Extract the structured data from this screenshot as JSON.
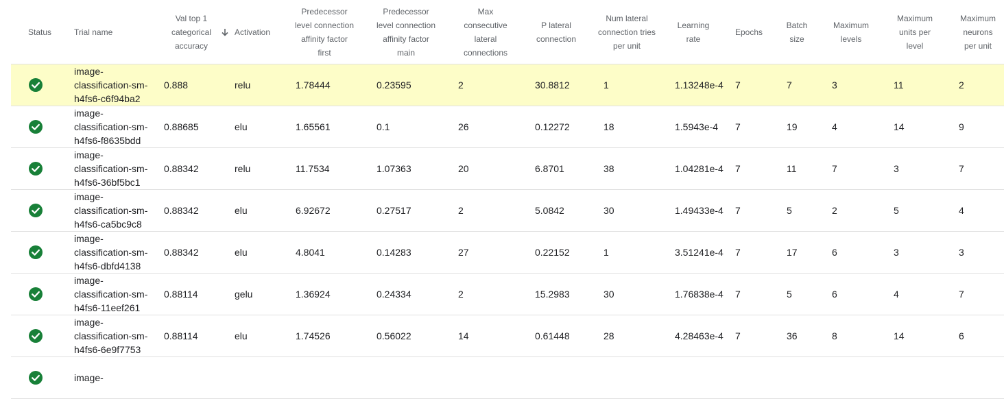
{
  "columns": {
    "status": "Status",
    "trial_name": "Trial name",
    "val_acc": "Val top 1 categorical accuracy",
    "activation": "Activation",
    "pred_first": "Predecessor level connection affinity factor first",
    "pred_main": "Predecessor level connection affinity factor main",
    "max_lateral": "Max consecutive lateral connections",
    "p_lateral": "P lateral connection",
    "num_lateral": "Num lateral connection tries per unit",
    "lr": "Learning rate",
    "epochs": "Epochs",
    "batch": "Batch size",
    "max_levels": "Maximum levels",
    "max_units": "Maximum units per level",
    "max_neurons": "Maximum neurons per unit"
  },
  "colors": {
    "success": "#188038",
    "selected_row": "#fdfdc8",
    "divider": "#e0e0e0"
  },
  "status_icon": "check-circle-icon",
  "sort_icon": "arrow-down-icon",
  "rows": [
    {
      "name_1": "image-",
      "name_2": "classification-sm-",
      "name_3": "h4fs6-c6f94ba2",
      "val": "0.888",
      "act": "relu",
      "pf": "1.78444",
      "pm": "0.23595",
      "mcl": "2",
      "pl": "30.8812",
      "nl": "1",
      "lr": "1.13248e-4",
      "ep": "7",
      "bs": "7",
      "ml": "3",
      "mu": "11",
      "mn": "2"
    },
    {
      "name_1": "image-",
      "name_2": "classification-sm-",
      "name_3": "h4fs6-f8635bdd",
      "val": "0.88685",
      "act": "elu",
      "pf": "1.65561",
      "pm": "0.1",
      "mcl": "26",
      "pl": "0.12272",
      "nl": "18",
      "lr": "1.5943e-4",
      "ep": "7",
      "bs": "19",
      "ml": "4",
      "mu": "14",
      "mn": "9"
    },
    {
      "name_1": "image-",
      "name_2": "classification-sm-",
      "name_3": "h4fs6-36bf5bc1",
      "val": "0.88342",
      "act": "relu",
      "pf": "11.7534",
      "pm": "1.07363",
      "mcl": "20",
      "pl": "6.8701",
      "nl": "38",
      "lr": "1.04281e-4",
      "ep": "7",
      "bs": "11",
      "ml": "7",
      "mu": "3",
      "mn": "7"
    },
    {
      "name_1": "image-",
      "name_2": "classification-sm-",
      "name_3": "h4fs6-ca5bc9c8",
      "val": "0.88342",
      "act": "elu",
      "pf": "6.92672",
      "pm": "0.27517",
      "mcl": "2",
      "pl": "5.0842",
      "nl": "30",
      "lr": "1.49433e-4",
      "ep": "7",
      "bs": "5",
      "ml": "2",
      "mu": "5",
      "mn": "4"
    },
    {
      "name_1": "image-",
      "name_2": "classification-sm-",
      "name_3": "h4fs6-dbfd4138",
      "val": "0.88342",
      "act": "elu",
      "pf": "4.8041",
      "pm": "0.14283",
      "mcl": "27",
      "pl": "0.22152",
      "nl": "1",
      "lr": "3.51241e-4",
      "ep": "7",
      "bs": "17",
      "ml": "6",
      "mu": "3",
      "mn": "3"
    },
    {
      "name_1": "image-",
      "name_2": "classification-sm-",
      "name_3": "h4fs6-11eef261",
      "val": "0.88114",
      "act": "gelu",
      "pf": "1.36924",
      "pm": "0.24334",
      "mcl": "2",
      "pl": "15.2983",
      "nl": "30",
      "lr": "1.76838e-4",
      "ep": "7",
      "bs": "5",
      "ml": "6",
      "mu": "4",
      "mn": "7"
    },
    {
      "name_1": "image-",
      "name_2": "classification-sm-",
      "name_3": "h4fs6-6e9f7753",
      "val": "0.88114",
      "act": "elu",
      "pf": "1.74526",
      "pm": "0.56022",
      "mcl": "14",
      "pl": "0.61448",
      "nl": "28",
      "lr": "4.28463e-4",
      "ep": "7",
      "bs": "36",
      "ml": "8",
      "mu": "14",
      "mn": "6"
    },
    {
      "name_1": "image-",
      "name_2": "",
      "name_3": "",
      "val": "",
      "act": "",
      "pf": "",
      "pm": "",
      "mcl": "",
      "pl": "",
      "nl": "",
      "lr": "",
      "ep": "",
      "bs": "",
      "ml": "",
      "mu": "",
      "mn": ""
    }
  ]
}
